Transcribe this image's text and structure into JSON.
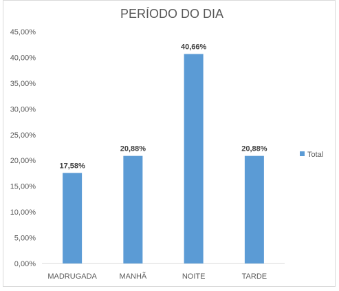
{
  "chart_data": {
    "type": "bar",
    "title": "PERÍODO DO DIA",
    "categories": [
      "MADRUGADA",
      "MANHÃ",
      "NOITE",
      "TARDE"
    ],
    "series": [
      {
        "name": "Total",
        "values": [
          17.58,
          20.88,
          40.66,
          20.88
        ]
      }
    ],
    "data_labels": [
      "17,58%",
      "20,88%",
      "40,66%",
      "20,88%"
    ],
    "yticks": [
      "0,00%",
      "5,00%",
      "10,00%",
      "15,00%",
      "20,00%",
      "25,00%",
      "30,00%",
      "35,00%",
      "40,00%",
      "45,00%"
    ],
    "ylim": [
      0,
      45
    ],
    "grid": false,
    "legend_position": "right",
    "color": "#5b9bd5"
  }
}
